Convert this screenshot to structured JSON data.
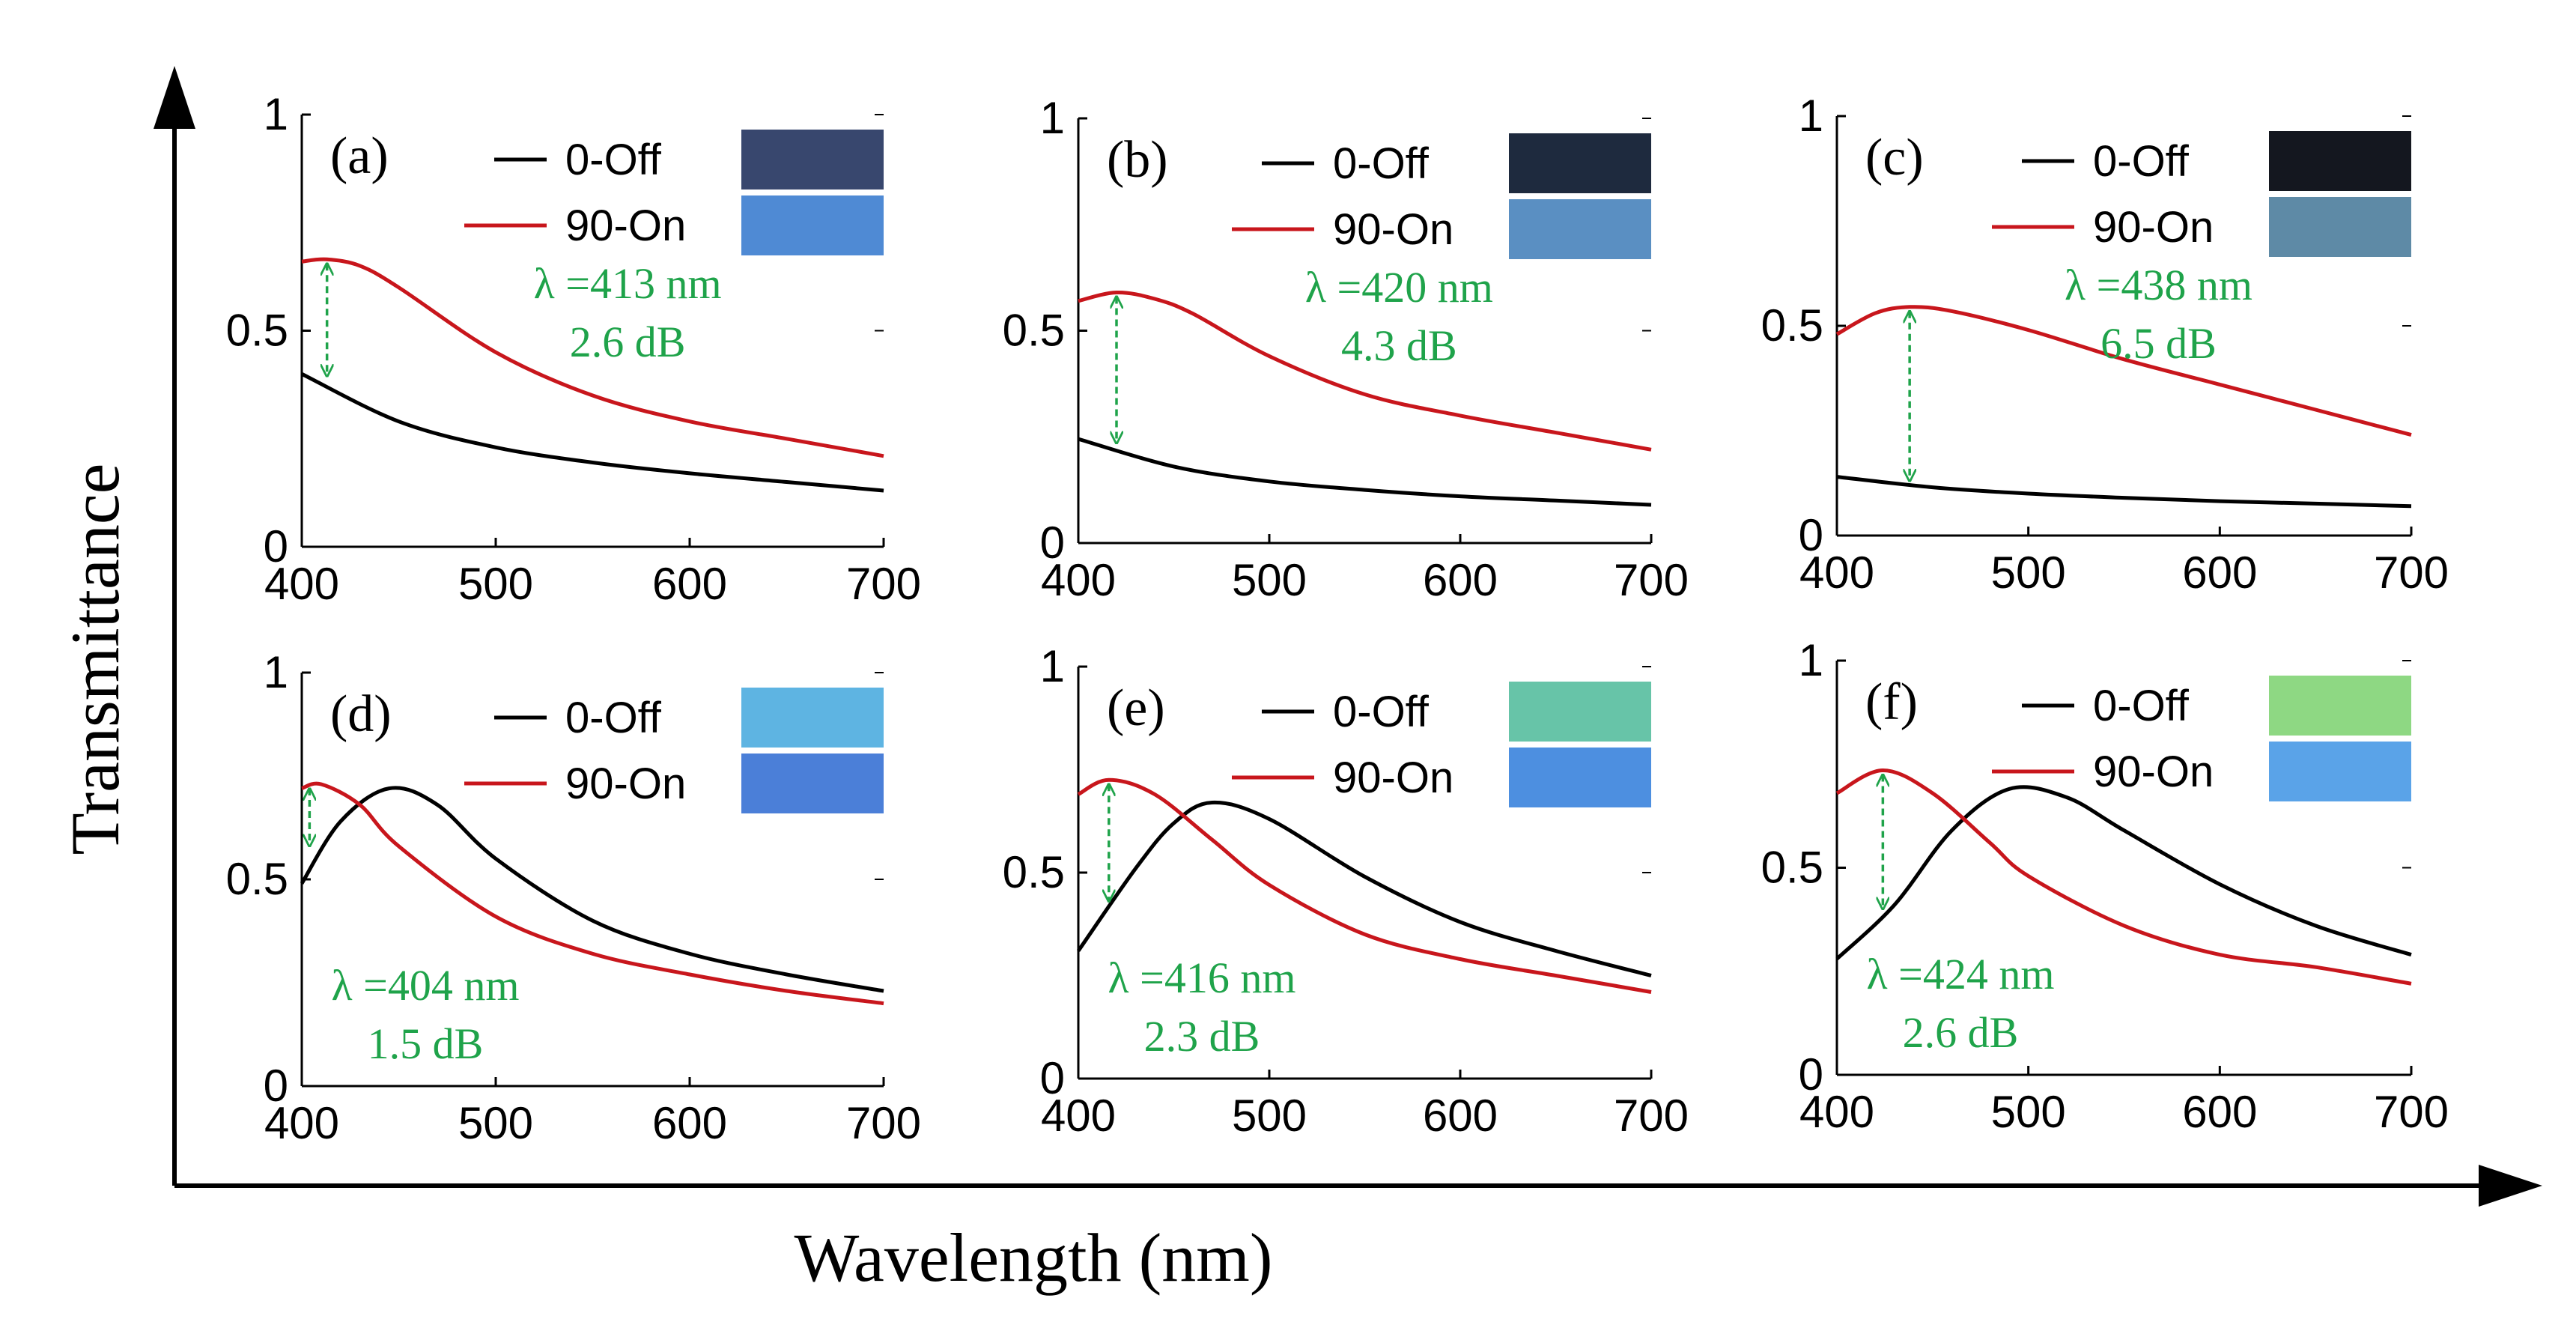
{
  "figure": {
    "ylabel": "Transmittance",
    "xlabel": "Wavelength (nm)"
  },
  "colors": {
    "off": "#000000",
    "on": "#c8161c",
    "annotation": "#1fa34a"
  },
  "chart_data": [
    {
      "type": "line",
      "label": "(a)",
      "xlim": [
        400,
        700
      ],
      "ylim": [
        0,
        1
      ],
      "xticks": [
        "400",
        "500",
        "600",
        "700"
      ],
      "yticks": [
        "0",
        "0.5",
        "1"
      ],
      "legend": [
        "0-Off",
        "90-On"
      ],
      "swatches": [
        "#38476e",
        "#4f8ad4"
      ],
      "annotation": {
        "lambda": "λ =413  nm",
        "db": "2.6 dB",
        "x": 413,
        "y_from": 0.385,
        "y_to": 0.665
      },
      "series": [
        {
          "name": "0-Off",
          "x": [
            400,
            450,
            500,
            550,
            600,
            650,
            700
          ],
          "values": [
            0.4,
            0.29,
            0.23,
            0.195,
            0.17,
            0.15,
            0.13
          ]
        },
        {
          "name": "90-On",
          "x": [
            400,
            413,
            430,
            450,
            500,
            550,
            600,
            650,
            700
          ],
          "values": [
            0.66,
            0.665,
            0.65,
            0.6,
            0.45,
            0.35,
            0.29,
            0.25,
            0.21
          ]
        }
      ]
    },
    {
      "type": "line",
      "label": "(b)",
      "xlim": [
        400,
        700
      ],
      "ylim": [
        0,
        1
      ],
      "xticks": [
        "400",
        "500",
        "600",
        "700"
      ],
      "yticks": [
        "0",
        "0.5",
        "1"
      ],
      "legend": [
        "0-Off",
        "90-On"
      ],
      "swatches": [
        "#1e2a3e",
        "#5a8fc2"
      ],
      "annotation": {
        "lambda": "λ =420  nm",
        "db": "4.3 dB",
        "x": 420,
        "y_from": 0.225,
        "y_to": 0.59
      },
      "series": [
        {
          "name": "0-Off",
          "x": [
            400,
            450,
            500,
            550,
            600,
            650,
            700
          ],
          "values": [
            0.245,
            0.18,
            0.145,
            0.125,
            0.11,
            0.1,
            0.09
          ]
        },
        {
          "name": "90-On",
          "x": [
            400,
            420,
            440,
            460,
            500,
            550,
            600,
            650,
            700
          ],
          "values": [
            0.57,
            0.59,
            0.575,
            0.54,
            0.44,
            0.35,
            0.3,
            0.26,
            0.22
          ]
        }
      ]
    },
    {
      "type": "line",
      "label": "(c)",
      "xlim": [
        400,
        700
      ],
      "ylim": [
        0,
        1
      ],
      "xticks": [
        "400",
        "500",
        "600",
        "700"
      ],
      "yticks": [
        "0",
        "0.5",
        "1"
      ],
      "legend": [
        "0-Off",
        "90-On"
      ],
      "swatches": [
        "#14171f",
        "#5e8aa6"
      ],
      "annotation": {
        "lambda": "λ =438  nm",
        "db": "6.5 dB",
        "x": 438,
        "y_from": 0.12,
        "y_to": 0.545
      },
      "series": [
        {
          "name": "0-Off",
          "x": [
            400,
            450,
            500,
            550,
            600,
            650,
            700
          ],
          "values": [
            0.14,
            0.115,
            0.1,
            0.09,
            0.082,
            0.076,
            0.07
          ]
        },
        {
          "name": "90-On",
          "x": [
            400,
            420,
            438,
            460,
            500,
            550,
            600,
            650,
            700
          ],
          "values": [
            0.48,
            0.53,
            0.545,
            0.535,
            0.49,
            0.42,
            0.36,
            0.3,
            0.24
          ]
        }
      ]
    },
    {
      "type": "line",
      "label": "(d)",
      "xlim": [
        400,
        700
      ],
      "ylim": [
        0,
        1
      ],
      "xticks": [
        "400",
        "500",
        "600",
        "700"
      ],
      "yticks": [
        "0",
        "0.5",
        "1"
      ],
      "legend": [
        "0-Off",
        "90-On"
      ],
      "swatches": [
        "#5eb4e2",
        "#4b7fd8"
      ],
      "annotation": {
        "lambda": "λ =404  nm",
        "db": "1.5 dB",
        "x": 404,
        "y_from": 0.57,
        "y_to": 0.73
      },
      "series": [
        {
          "name": "0-Off",
          "x": [
            400,
            420,
            445,
            470,
            500,
            550,
            600,
            650,
            700
          ],
          "values": [
            0.49,
            0.64,
            0.72,
            0.68,
            0.55,
            0.4,
            0.32,
            0.27,
            0.23
          ]
        },
        {
          "name": "90-On",
          "x": [
            400,
            410,
            430,
            450,
            500,
            550,
            600,
            650,
            700
          ],
          "values": [
            0.72,
            0.73,
            0.68,
            0.58,
            0.41,
            0.32,
            0.27,
            0.23,
            0.2
          ]
        }
      ]
    },
    {
      "type": "line",
      "label": "(e)",
      "xlim": [
        400,
        700
      ],
      "ylim": [
        0,
        1
      ],
      "xticks": [
        "400",
        "500",
        "600",
        "700"
      ],
      "yticks": [
        "0",
        "0.5",
        "1"
      ],
      "legend": [
        "0-Off",
        "90-On"
      ],
      "swatches": [
        "#67c4a8",
        "#4d8fe0"
      ],
      "annotation": {
        "lambda": "λ =416  nm",
        "db": "2.3 dB",
        "x": 416,
        "y_from": 0.42,
        "y_to": 0.725
      },
      "series": [
        {
          "name": "0-Off",
          "x": [
            400,
            430,
            450,
            470,
            500,
            550,
            600,
            650,
            700
          ],
          "values": [
            0.31,
            0.51,
            0.62,
            0.67,
            0.63,
            0.49,
            0.38,
            0.31,
            0.25
          ]
        },
        {
          "name": "90-On",
          "x": [
            400,
            416,
            440,
            470,
            500,
            550,
            600,
            650,
            700
          ],
          "values": [
            0.69,
            0.725,
            0.69,
            0.58,
            0.47,
            0.35,
            0.29,
            0.25,
            0.21
          ]
        }
      ]
    },
    {
      "type": "line",
      "label": "(f)",
      "xlim": [
        400,
        700
      ],
      "ylim": [
        0,
        1
      ],
      "xticks": [
        "400",
        "500",
        "600",
        "700"
      ],
      "yticks": [
        "0",
        "0.5",
        "1"
      ],
      "legend": [
        "0-Off",
        "90-On"
      ],
      "swatches": [
        "#8ed883",
        "#5aa3e8"
      ],
      "annotation": {
        "lambda": "λ =424  nm",
        "db": "2.6 dB",
        "x": 424,
        "y_from": 0.39,
        "y_to": 0.735
      },
      "series": [
        {
          "name": "0-Off",
          "x": [
            400,
            430,
            460,
            490,
            520,
            550,
            600,
            650,
            700
          ],
          "values": [
            0.28,
            0.41,
            0.59,
            0.69,
            0.67,
            0.59,
            0.46,
            0.36,
            0.29
          ]
        },
        {
          "name": "90-On",
          "x": [
            400,
            424,
            450,
            480,
            500,
            550,
            600,
            650,
            700
          ],
          "values": [
            0.68,
            0.735,
            0.68,
            0.56,
            0.48,
            0.36,
            0.29,
            0.26,
            0.22
          ]
        }
      ]
    }
  ]
}
